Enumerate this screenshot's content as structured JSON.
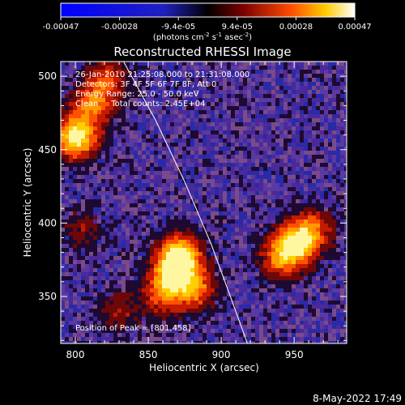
{
  "footer_date": "8-May-2022 17:49",
  "colorbar": {
    "tick_labels": [
      "-0.00047",
      "-0.00028",
      "-9.4e-05",
      "9.4e-05",
      "0.00028",
      "0.00047"
    ],
    "range": [
      -0.00047,
      0.00047
    ],
    "unit_main": "(photons cm",
    "unit_sup1": "-2",
    "unit_mid": " s",
    "unit_sup2": "-1",
    "unit_end": " asec",
    "unit_sup3": "-2",
    "unit_close": ")"
  },
  "chart_data": {
    "type": "heatmap",
    "title": "Reconstructed RHESSI Image",
    "xlabel": "Heliocentric X (arcsec)",
    "ylabel": "Heliocentric Y (arcsec)",
    "xlim": [
      790,
      986
    ],
    "ylim": [
      318,
      510
    ],
    "xticks": [
      800,
      850,
      900,
      950
    ],
    "yticks": [
      350,
      400,
      450,
      500
    ],
    "annotations": [
      "26-Jan-2010 21:25:08.000 to 21:31:08.000",
      "Detectors: 3F 4F 5F 6F 7F 8F, Att 0",
      "Energy Range: 25.0 - 50.0 keV",
      "Clean     Total counts: 2.45E+04"
    ],
    "peak_label": "Position of Peak = [801,458]",
    "peak_position": [
      801,
      458
    ],
    "limb_curve": [
      [
        832,
        512
      ],
      [
        855,
        470
      ],
      [
        875,
        428
      ],
      [
        893,
        386
      ],
      [
        907,
        348
      ],
      [
        918,
        318
      ]
    ],
    "sources": [
      {
        "x": 801,
        "y": 458,
        "intensity": 1.0
      },
      {
        "x": 812,
        "y": 480,
        "intensity": 0.6
      },
      {
        "x": 822,
        "y": 498,
        "intensity": 0.45
      },
      {
        "x": 872,
        "y": 378,
        "intensity": 0.95
      },
      {
        "x": 866,
        "y": 365,
        "intensity": 0.7
      },
      {
        "x": 882,
        "y": 355,
        "intensity": 0.6
      },
      {
        "x": 860,
        "y": 350,
        "intensity": 0.45
      },
      {
        "x": 950,
        "y": 385,
        "intensity": 0.8
      },
      {
        "x": 962,
        "y": 395,
        "intensity": 0.55
      },
      {
        "x": 940,
        "y": 375,
        "intensity": 0.5
      },
      {
        "x": 830,
        "y": 340,
        "intensity": 0.3
      },
      {
        "x": 804,
        "y": 395,
        "intensity": 0.25
      }
    ]
  }
}
